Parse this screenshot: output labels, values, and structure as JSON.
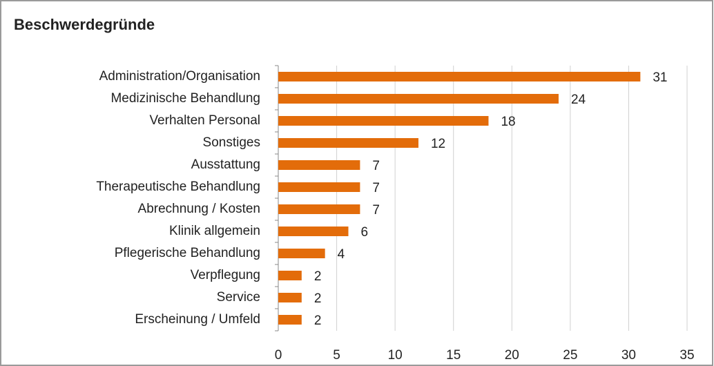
{
  "chart_data": {
    "type": "bar",
    "orientation": "horizontal",
    "title": "Beschwerdegründe",
    "categories": [
      "Administration/Organisation",
      "Medizinische Behandlung",
      "Verhalten Personal",
      "Sonstiges",
      "Ausstattung",
      "Therapeutische Behandlung",
      "Abrechnung / Kosten",
      "Klinik allgemein",
      "Pflegerische Behandlung",
      "Verpflegung",
      "Service",
      "Erscheinung / Umfeld"
    ],
    "values": [
      31,
      24,
      18,
      12,
      7,
      7,
      7,
      6,
      4,
      2,
      2,
      2
    ],
    "color": "#e36c0a",
    "xlim": [
      0,
      35
    ],
    "xticks": [
      0,
      5,
      10,
      15,
      20,
      25,
      30,
      35
    ],
    "grid": true
  }
}
